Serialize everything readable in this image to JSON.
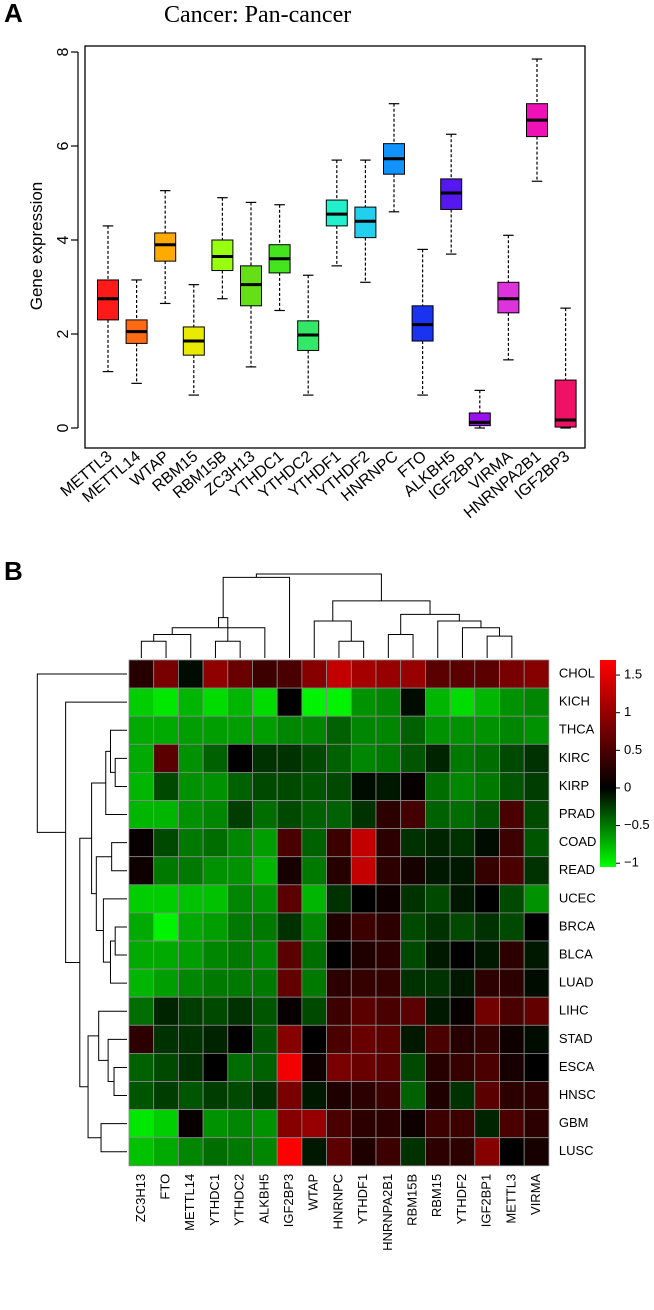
{
  "panels": {
    "a": "A",
    "b": "B"
  },
  "chart_data": [
    {
      "type": "box",
      "title": "Cancer: Pan-cancer",
      "ylabel": "Gene expression",
      "xlabel": "",
      "ylim": [
        0,
        8
      ],
      "yticks": [
        "0",
        "2",
        "4",
        "6",
        "8"
      ],
      "series": [
        {
          "name": "METTL3",
          "color": "#ff1a1a",
          "min": 1.2,
          "q1": 2.3,
          "median": 2.75,
          "q3": 3.15,
          "max": 4.3
        },
        {
          "name": "METTL14",
          "color": "#ff6a13",
          "min": 0.95,
          "q1": 1.8,
          "median": 2.05,
          "q3": 2.3,
          "max": 3.15
        },
        {
          "name": "WTAP",
          "color": "#ffaa00",
          "min": 2.65,
          "q1": 3.55,
          "median": 3.9,
          "q3": 4.15,
          "max": 5.05
        },
        {
          "name": "RBM15",
          "color": "#eaea00",
          "min": 0.7,
          "q1": 1.55,
          "median": 1.85,
          "q3": 2.15,
          "max": 3.05
        },
        {
          "name": "RBM15B",
          "color": "#99ff11",
          "min": 2.75,
          "q1": 3.35,
          "median": 3.65,
          "q3": 4.0,
          "max": 4.9
        },
        {
          "name": "ZC3H13",
          "color": "#66e016",
          "min": 1.3,
          "q1": 2.6,
          "median": 3.05,
          "q3": 3.45,
          "max": 4.8
        },
        {
          "name": "YTHDC1",
          "color": "#44e41e",
          "min": 2.5,
          "q1": 3.3,
          "median": 3.6,
          "q3": 3.9,
          "max": 4.75
        },
        {
          "name": "YTHDC2",
          "color": "#33e866",
          "min": 0.7,
          "q1": 1.65,
          "median": 1.98,
          "q3": 2.28,
          "max": 3.25
        },
        {
          "name": "YTHDF1",
          "color": "#22f0cc",
          "min": 3.45,
          "q1": 4.3,
          "median": 4.55,
          "q3": 4.85,
          "max": 5.7
        },
        {
          "name": "YTHDF2",
          "color": "#23cfee",
          "min": 3.1,
          "q1": 4.05,
          "median": 4.4,
          "q3": 4.7,
          "max": 5.7
        },
        {
          "name": "HNRNPC",
          "color": "#1193ff",
          "min": 4.6,
          "q1": 5.4,
          "median": 5.73,
          "q3": 6.05,
          "max": 6.9
        },
        {
          "name": "FTO",
          "color": "#1a33f0",
          "min": 0.7,
          "q1": 1.85,
          "median": 2.2,
          "q3": 2.6,
          "max": 3.8
        },
        {
          "name": "ALKBH5",
          "color": "#5518ee",
          "min": 3.7,
          "q1": 4.65,
          "median": 5.0,
          "q3": 5.3,
          "max": 6.25
        },
        {
          "name": "IGF2BP1",
          "color": "#9a10ee",
          "min": 0.0,
          "q1": 0.05,
          "median": 0.12,
          "q3": 0.32,
          "max": 0.8
        },
        {
          "name": "VIRMA",
          "color": "#dd33dd",
          "min": 1.45,
          "q1": 2.45,
          "median": 2.75,
          "q3": 3.1,
          "max": 4.1
        },
        {
          "name": "HNRNPA2B1",
          "color": "#ee11b5",
          "min": 5.25,
          "q1": 6.2,
          "median": 6.55,
          "q3": 6.9,
          "max": 7.85
        },
        {
          "name": "IGF2BP3",
          "color": "#ee1166",
          "min": 0.0,
          "q1": 0.02,
          "median": 0.17,
          "q3": 1.02,
          "max": 2.55
        }
      ]
    },
    {
      "type": "heatmap",
      "columns": [
        "ZC3H13",
        "FTO",
        "METTL14",
        "YTHDC1",
        "YTHDC2",
        "ALKBH5",
        "IGF2BP3",
        "WTAP",
        "HNRNPC",
        "YTHDF1",
        "HNRNPA2B1",
        "RBM15B",
        "RBM15",
        "YTHDF2",
        "IGF2BP1",
        "METTL3",
        "VIRMA"
      ],
      "rows": [
        "CHOL",
        "KICH",
        "THCA",
        "KIRC",
        "KIRP",
        "PRAD",
        "COAD",
        "READ",
        "UCEC",
        "BRCA",
        "BLCA",
        "LUAD",
        "LIHC",
        "STAD",
        "ESCA",
        "HNSC",
        "GBM",
        "LUSC"
      ],
      "values": [
        [
          0.25,
          0.8,
          -0.05,
          0.95,
          0.7,
          0.4,
          0.5,
          0.9,
          1.3,
          1.1,
          1.0,
          1.0,
          0.6,
          0.6,
          0.6,
          0.8,
          0.9
        ],
        [
          -0.85,
          -0.95,
          -0.75,
          -0.9,
          -0.75,
          -0.9,
          0.0,
          -1.0,
          -1.0,
          -0.6,
          -0.55,
          -0.05,
          -0.75,
          -0.9,
          -0.75,
          -0.6,
          -0.55
        ],
        [
          -0.7,
          -0.7,
          -0.65,
          -0.65,
          -0.65,
          -0.65,
          -0.55,
          -0.55,
          -0.4,
          -0.55,
          -0.55,
          -0.4,
          -0.6,
          -0.6,
          -0.6,
          -0.55,
          -0.6
        ],
        [
          -0.7,
          0.6,
          -0.6,
          -0.4,
          0.0,
          -0.2,
          -0.2,
          -0.3,
          -0.4,
          -0.55,
          -0.5,
          -0.35,
          -0.15,
          -0.5,
          -0.45,
          -0.3,
          -0.2
        ],
        [
          -0.75,
          -0.3,
          -0.6,
          -0.6,
          -0.4,
          -0.3,
          -0.3,
          -0.35,
          -0.3,
          -0.05,
          -0.1,
          0.05,
          -0.45,
          -0.55,
          -0.5,
          -0.35,
          -0.25
        ],
        [
          -0.75,
          -0.75,
          -0.6,
          -0.55,
          -0.25,
          -0.45,
          -0.3,
          -0.4,
          -0.4,
          -0.2,
          0.3,
          0.45,
          -0.4,
          -0.45,
          -0.35,
          0.5,
          -0.3
        ],
        [
          0.05,
          -0.3,
          -0.5,
          -0.45,
          -0.55,
          -0.65,
          0.5,
          -0.4,
          0.4,
          1.3,
          0.3,
          -0.2,
          -0.15,
          -0.2,
          -0.05,
          0.4,
          -0.35
        ],
        [
          0.1,
          -0.5,
          -0.5,
          -0.6,
          -0.6,
          -0.75,
          0.15,
          -0.5,
          0.25,
          1.3,
          0.3,
          0.15,
          -0.1,
          -0.1,
          0.35,
          0.5,
          -0.2
        ],
        [
          -0.85,
          -0.85,
          -0.8,
          -0.8,
          -0.55,
          -0.6,
          0.6,
          -0.75,
          -0.2,
          0.0,
          0.1,
          -0.2,
          -0.3,
          -0.1,
          0.0,
          -0.3,
          -0.6
        ],
        [
          -0.7,
          -1.0,
          -0.7,
          -0.65,
          -0.5,
          -0.5,
          -0.2,
          -0.55,
          0.2,
          0.4,
          0.3,
          -0.3,
          -0.2,
          -0.3,
          -0.2,
          -0.3,
          0.0
        ],
        [
          -0.7,
          -0.7,
          -0.65,
          -0.55,
          -0.5,
          -0.55,
          0.6,
          -0.45,
          0.0,
          0.2,
          0.3,
          -0.3,
          -0.1,
          0.0,
          -0.1,
          0.3,
          -0.1
        ],
        [
          -0.75,
          -0.65,
          -0.55,
          -0.5,
          -0.5,
          -0.5,
          0.65,
          -0.5,
          0.3,
          0.35,
          0.35,
          -0.2,
          -0.2,
          -0.1,
          0.3,
          0.3,
          -0.05
        ],
        [
          -0.45,
          -0.15,
          -0.25,
          -0.3,
          -0.2,
          -0.35,
          0.05,
          -0.3,
          0.4,
          0.6,
          0.5,
          0.6,
          -0.1,
          0.05,
          0.75,
          0.5,
          0.65
        ],
        [
          0.3,
          -0.2,
          -0.2,
          -0.15,
          0.0,
          -0.35,
          0.9,
          0.0,
          0.5,
          0.7,
          0.6,
          -0.1,
          0.5,
          0.25,
          0.35,
          0.1,
          -0.05
        ],
        [
          -0.4,
          -0.3,
          -0.2,
          0.0,
          -0.45,
          -0.4,
          1.6,
          0.1,
          0.8,
          0.7,
          0.6,
          -0.3,
          0.25,
          0.35,
          0.5,
          0.15,
          0.0
        ],
        [
          -0.35,
          -0.25,
          -0.35,
          -0.25,
          -0.3,
          -0.2,
          0.8,
          -0.1,
          0.2,
          0.3,
          0.4,
          -0.4,
          0.2,
          -0.2,
          0.6,
          0.3,
          0.3
        ],
        [
          -0.95,
          -0.85,
          0.05,
          -0.6,
          -0.55,
          -0.6,
          0.9,
          1.0,
          0.5,
          0.3,
          0.3,
          0.1,
          0.4,
          0.4,
          -0.15,
          0.5,
          0.3
        ],
        [
          -0.8,
          -0.7,
          -0.55,
          -0.45,
          -0.5,
          -0.55,
          1.7,
          -0.1,
          0.6,
          0.2,
          0.4,
          -0.2,
          0.3,
          0.3,
          0.9,
          0.0,
          0.15
        ]
      ],
      "legend": {
        "ticks": [
          1.5,
          1,
          0.5,
          0,
          -0.5,
          -1
        ],
        "tick_labels": [
          "1.5",
          "1",
          "0.5",
          "0",
          "−0.5",
          "−1"
        ],
        "range": [
          -1.05,
          1.7
        ],
        "low_color": "#00ff00",
        "mid_color": "#000000",
        "high_color": "#ff0000"
      }
    }
  ]
}
